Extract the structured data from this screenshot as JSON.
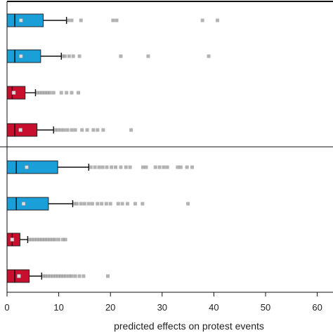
{
  "chart_data": {
    "type": "box",
    "xlabel": "predicted effects on protest events",
    "xlim": [
      0,
      63
    ],
    "x_ticks": [
      0,
      10,
      20,
      30,
      40,
      50,
      60
    ],
    "x_tick_labels": [
      "0",
      "10",
      "20",
      "30",
      "40",
      "50",
      "60"
    ],
    "colors": {
      "blue": "#1a9fd8",
      "red": "#c8102e",
      "whisker": "#111111",
      "outlier": "#9a9a9a",
      "mean": "#dddddd"
    },
    "panels": [
      {
        "boxes": [
          {
            "color": "blue",
            "whisker_low": 0,
            "q1": 0,
            "median": 1.5,
            "mean": 2.7,
            "q3": 7.0,
            "whisker_high": 11.5,
            "outliers": [
              11.8,
              12.5,
              14.3,
              20.5,
              21.2,
              37.8,
              40.7
            ]
          },
          {
            "color": "blue",
            "whisker_low": 0,
            "q1": 0,
            "median": 1.5,
            "mean": 2.7,
            "q3": 6.5,
            "whisker_high": 10.5,
            "outliers": [
              10.8,
              11.2,
              12.0,
              12.8,
              14.0,
              22.0,
              27.3,
              39.0
            ]
          },
          {
            "color": "red",
            "whisker_low": 0,
            "q1": 0,
            "median": 1.0,
            "mean": 1.3,
            "q3": 3.5,
            "whisker_high": 5.5,
            "outliers": [
              5.8,
              6.3,
              6.8,
              7.3,
              7.8,
              8.3,
              9.0,
              10.5,
              11.5,
              12.5,
              13.8
            ]
          },
          {
            "color": "red",
            "whisker_low": 0,
            "q1": 0,
            "median": 1.5,
            "mean": 2.6,
            "q3": 5.8,
            "whisker_high": 9.0,
            "outliers": [
              9.3,
              9.8,
              10.4,
              11.0,
              11.7,
              12.5,
              13.2,
              14.5,
              15.5,
              16.7,
              17.5,
              18.6,
              24.0
            ]
          }
        ]
      },
      {
        "boxes": [
          {
            "color": "blue",
            "whisker_low": 0,
            "q1": 0,
            "median": 1.8,
            "mean": 3.8,
            "q3": 9.8,
            "whisker_high": 15.8,
            "outliers": [
              16.2,
              17.0,
              17.8,
              18.5,
              19.3,
              20.2,
              21.0,
              22.0,
              23.0,
              23.8,
              26.3,
              26.9,
              28.7,
              29.5,
              30.3,
              31.0,
              33.0,
              33.6,
              34.8,
              35.8
            ]
          },
          {
            "color": "blue",
            "whisker_low": 0,
            "q1": 0,
            "median": 1.8,
            "mean": 3.2,
            "q3": 8.0,
            "whisker_high": 12.7,
            "outliers": [
              13.0,
              13.5,
              14.3,
              15.0,
              15.8,
              16.5,
              17.5,
              18.3,
              19.2,
              20.0,
              21.5,
              22.3,
              23.3,
              24.8,
              26.2,
              35.0
            ]
          },
          {
            "color": "red",
            "whisker_low": 0,
            "q1": 0,
            "median": 1.0,
            "mean": 1.0,
            "q3": 2.5,
            "whisker_high": 4.0,
            "outliers": [
              4.3,
              4.8,
              5.3,
              5.8,
              6.3,
              6.8,
              7.3,
              7.8,
              8.3,
              8.8,
              9.3,
              10.0,
              10.8,
              11.3
            ]
          },
          {
            "color": "red",
            "whisker_low": 0,
            "q1": 0,
            "median": 1.5,
            "mean": 2.3,
            "q3": 4.3,
            "whisker_high": 6.7,
            "outliers": [
              7.0,
              7.4,
              7.9,
              8.4,
              8.9,
              9.4,
              9.9,
              10.4,
              10.9,
              11.4,
              12.0,
              12.5,
              13.2,
              14.0,
              14.8,
              19.5
            ]
          }
        ]
      }
    ]
  }
}
